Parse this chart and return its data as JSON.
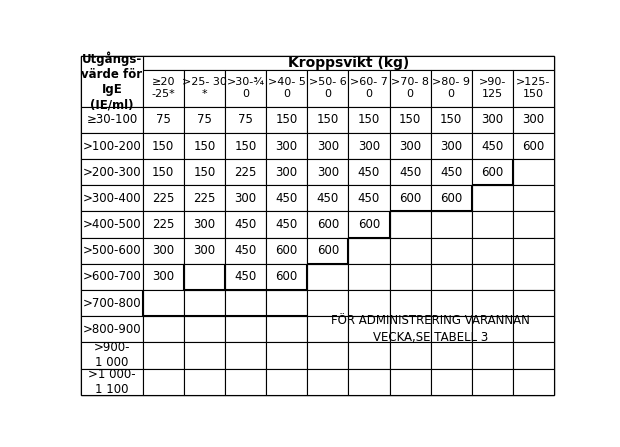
{
  "title": "Kroppsvikt (kg)",
  "col_headers": [
    "≥20\n-25*",
    ">25- 30\n*",
    ">30-¾\n0",
    ">40- 5\n0",
    ">50- 6\n0",
    ">60- 7\n0",
    ">70- 8\n0",
    ">80- 9\n0",
    ">90-\n125",
    ">125-\n150"
  ],
  "row_label_header": "Utgångs-\nvärde för\nIgE\n(IE/ml)",
  "row_labels": [
    "≥30-100",
    ">100-200",
    ">200-300",
    ">300-400",
    ">400-500",
    ">500-600",
    ">600-700",
    ">700-800",
    ">800-900",
    ">900-\n1 000",
    ">1 000-\n1 100"
  ],
  "table_data": [
    [
      "75",
      "75",
      "75",
      "150",
      "150",
      "150",
      "150",
      "150",
      "300",
      "300"
    ],
    [
      "150",
      "150",
      "150",
      "300",
      "300",
      "300",
      "300",
      "300",
      "450",
      "600"
    ],
    [
      "150",
      "150",
      "225",
      "300",
      "300",
      "450",
      "450",
      "450",
      "600",
      ""
    ],
    [
      "225",
      "225",
      "300",
      "450",
      "450",
      "450",
      "600",
      "600",
      "",
      ""
    ],
    [
      "225",
      "300",
      "450",
      "450",
      "600",
      "600",
      "",
      "",
      "",
      ""
    ],
    [
      "300",
      "300",
      "450",
      "600",
      "600",
      "",
      "",
      "",
      "",
      ""
    ],
    [
      "300",
      "",
      "450",
      "600",
      "",
      "",
      "",
      "",
      "",
      ""
    ],
    [
      "",
      "",
      "",
      "",
      "",
      "",
      "",
      "",
      "",
      ""
    ],
    [
      "",
      "",
      "",
      "",
      "",
      "",
      "",
      "",
      "",
      ""
    ],
    [
      "",
      "",
      "",
      "",
      "",
      "",
      "",
      "",
      "",
      ""
    ],
    [
      "",
      "",
      "",
      "",
      "",
      "",
      "",
      "",
      "",
      ""
    ]
  ],
  "staircase_note": "FÖR ADMINISTRERING VARANNAN\nVECKA,SE TABELL 3",
  "background_color": "#ffffff"
}
